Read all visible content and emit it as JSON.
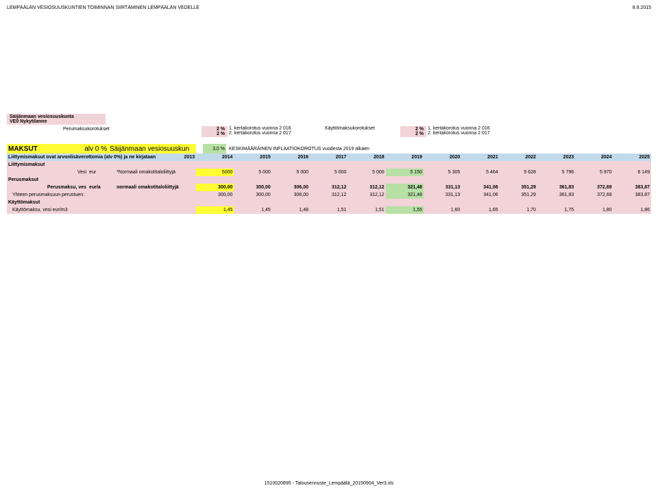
{
  "header": {
    "title_left": "LEMPÄÄLÄN VESIOSUUSKUNTIEN TOIMINNAN SIIRTÄMINEN LEMPÄÄLÄN VEDELLE",
    "title_right": "8.9.2015"
  },
  "block1": {
    "line1": "Säijänmaan vesiosuuskunta",
    "line2": "VE0 Nykytilanne"
  },
  "korot": {
    "left_label": "Perumaksukorotukset",
    "left_pcts": [
      "2 %",
      "2 %"
    ],
    "left_lines": [
      "1. kertakorotus  vuonna      2 016",
      "2. kertakorotus  vuonna      2 017"
    ],
    "right_label": "Käyttömaksukorotukset",
    "right_pcts": [
      "2 %",
      "2 %"
    ],
    "right_lines": [
      "1. kertakorotus  vuonna      2 016",
      "2. kertakorotus  vuonna      2 017"
    ]
  },
  "maksut": {
    "label": "MAKSUT",
    "alv": "alv 0 %",
    "saij": "Säijänmaan vesiosuuskun",
    "pct": "3,0 %",
    "desc": "KESKIMÄÄRÄINEN INFLAATIOKOROTUS vuodesta 2019 alkaen"
  },
  "table": {
    "head_first": "Liittymismaksut ovat arvonlisäverottomia (alv 0%) ja ne kirjataan",
    "years": [
      "2013",
      "2014",
      "2015",
      "2016",
      "2017",
      "2018",
      "2019",
      "2020",
      "2021",
      "2022",
      "2023",
      "2024",
      "2025"
    ],
    "hl_year_index": 6,
    "rows": [
      {
        "type": "section",
        "label": "Liittymismaksut"
      },
      {
        "type": "data",
        "c0": "Vesi",
        "c1": "eur",
        "c2": "*Normaali omakotitaloliittyjä",
        "vals": [
          "5000",
          "5 000",
          "5 000",
          "5 000",
          "5 000",
          "5 150",
          "5 305",
          "5 464",
          "5 628",
          "5 796",
          "5 970",
          "6 149"
        ],
        "hl": 5,
        "first_yellow": true
      },
      {
        "type": "section",
        "label": "Perusmaksut"
      },
      {
        "type": "data",
        "c0": "Perusmaksu, ves",
        "c1": "eur/a",
        "c2": "normaali omakotitaloliittyjä",
        "bold": true,
        "vals": [
          "300,00",
          "300,00",
          "306,00",
          "312,12",
          "312,12",
          "321,48",
          "331,13",
          "341,06",
          "351,29",
          "361,83",
          "372,69",
          "383,87"
        ],
        "hl": 5,
        "first_yellow": true
      },
      {
        "type": "data",
        "c0": "Yhteen perusmaksuun perustuen:",
        "c1": "",
        "c2": "",
        "span": true,
        "vals": [
          "300,00",
          "300,00",
          "306,00",
          "312,12",
          "312,12",
          "321,48",
          "331,13",
          "341,06",
          "351,29",
          "361,83",
          "372,69",
          "383,87"
        ],
        "hl": 5
      },
      {
        "type": "section",
        "label": "Käyttömaksut"
      },
      {
        "type": "data",
        "c0": "Käyttömaksu, vesi",
        "c1": "eur/m3",
        "c2": "",
        "span": true,
        "vals": [
          "1,45",
          "1,45",
          "1,48",
          "1,51",
          "1,51",
          "1,55",
          "1,60",
          "1,65",
          "1,70",
          "1,75",
          "1,80",
          "1,86"
        ],
        "hl": 5,
        "first_yellow": true
      }
    ]
  },
  "footer": "1510020895 - Talousennuste_Lempäälä_20150904_Ver3.xls"
}
